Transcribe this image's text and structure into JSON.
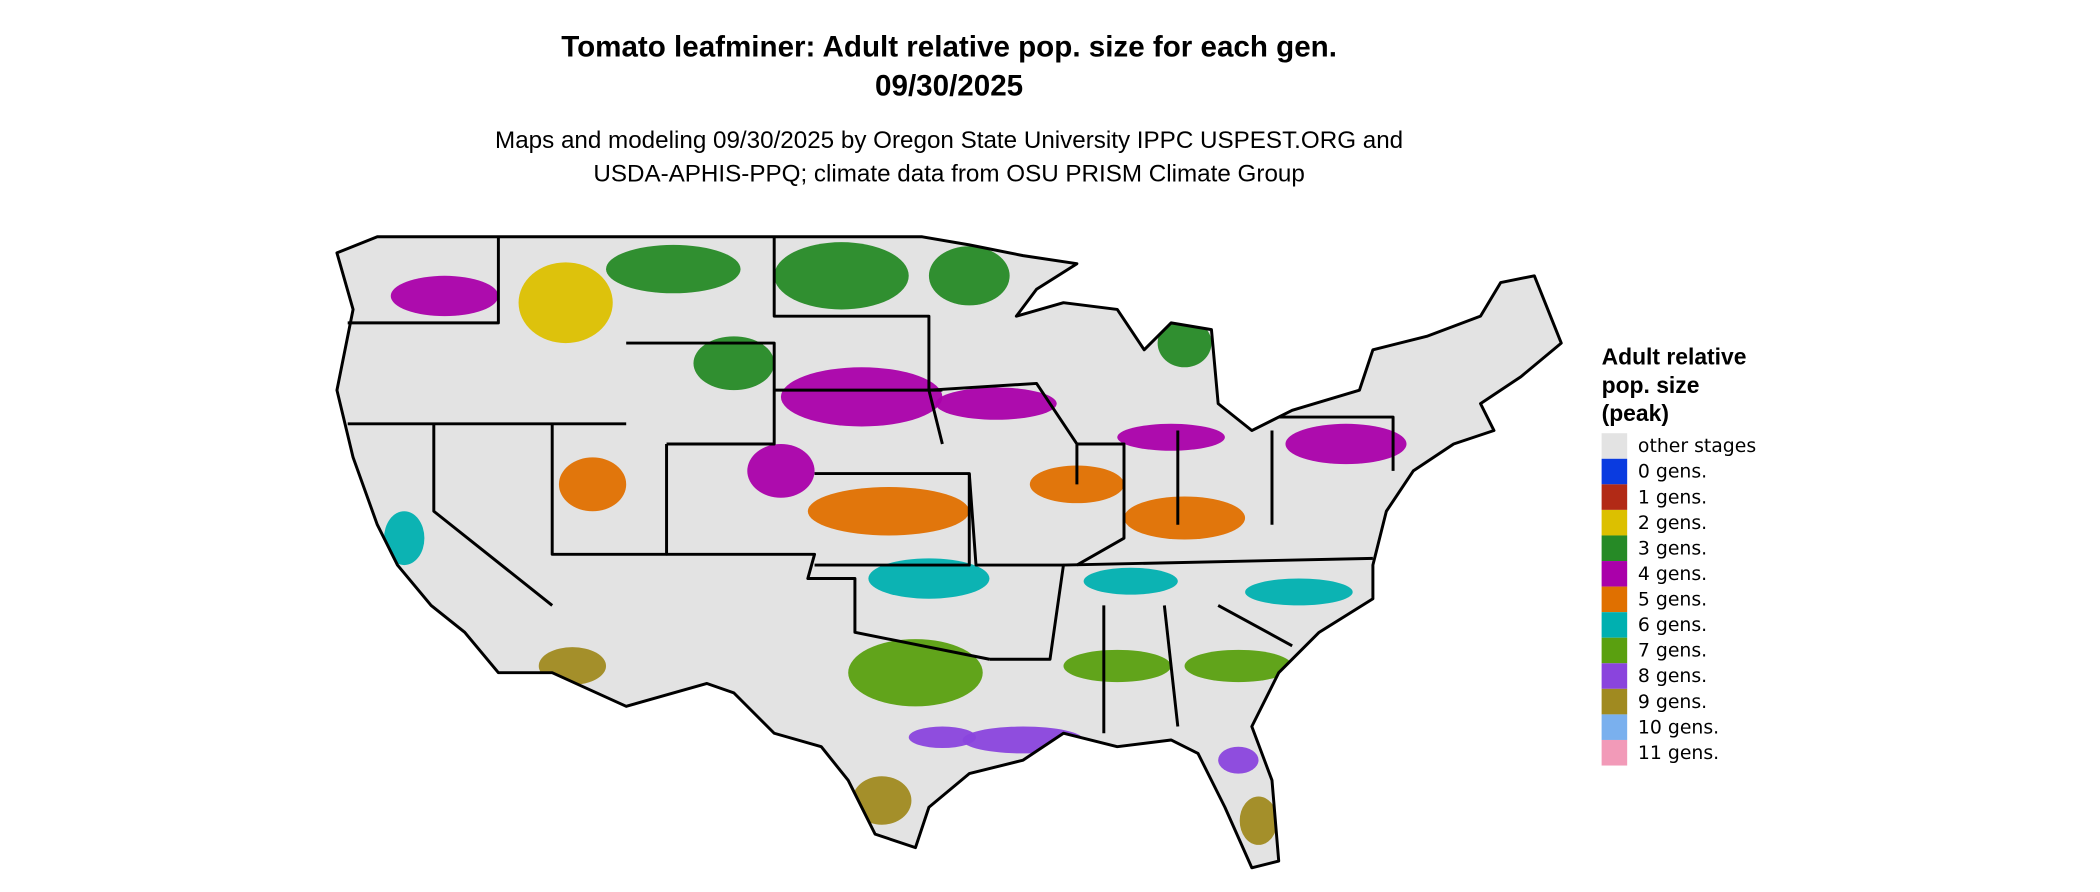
{
  "header": {
    "title": "Tomato leafminer: Adult relative pop. size for each gen.",
    "date": "09/30/2025",
    "subtitle_lines": [
      "Maps and modeling 09/30/2025 by Oregon State University IPPC USPEST.ORG and",
      "USDA-APHIS-PPQ; climate data from OSU PRISM Climate Group"
    ]
  },
  "legend": {
    "title_lines": [
      "Adult relative",
      "pop. size",
      "(peak)"
    ],
    "items": [
      {
        "label": "other stages",
        "color": "#e3e3e3"
      },
      {
        "label": "0 gens.",
        "color": "#0a3be0"
      },
      {
        "label": "1 gens.",
        "color": "#b22a16"
      },
      {
        "label": "2 gens.",
        "color": "#dcc000"
      },
      {
        "label": "3 gens.",
        "color": "#268a26"
      },
      {
        "label": "4 gens.",
        "color": "#aa00aa"
      },
      {
        "label": "5 gens.",
        "color": "#e07000"
      },
      {
        "label": "6 gens.",
        "color": "#00b0b0"
      },
      {
        "label": "7 gens.",
        "color": "#5aa010"
      },
      {
        "label": "8 gens.",
        "color": "#8a44dd"
      },
      {
        "label": "9 gens.",
        "color": "#a08a20"
      },
      {
        "label": "10 gens.",
        "color": "#7ab0ee"
      },
      {
        "label": "11 gens.",
        "color": "#f29ab8"
      }
    ]
  }
}
